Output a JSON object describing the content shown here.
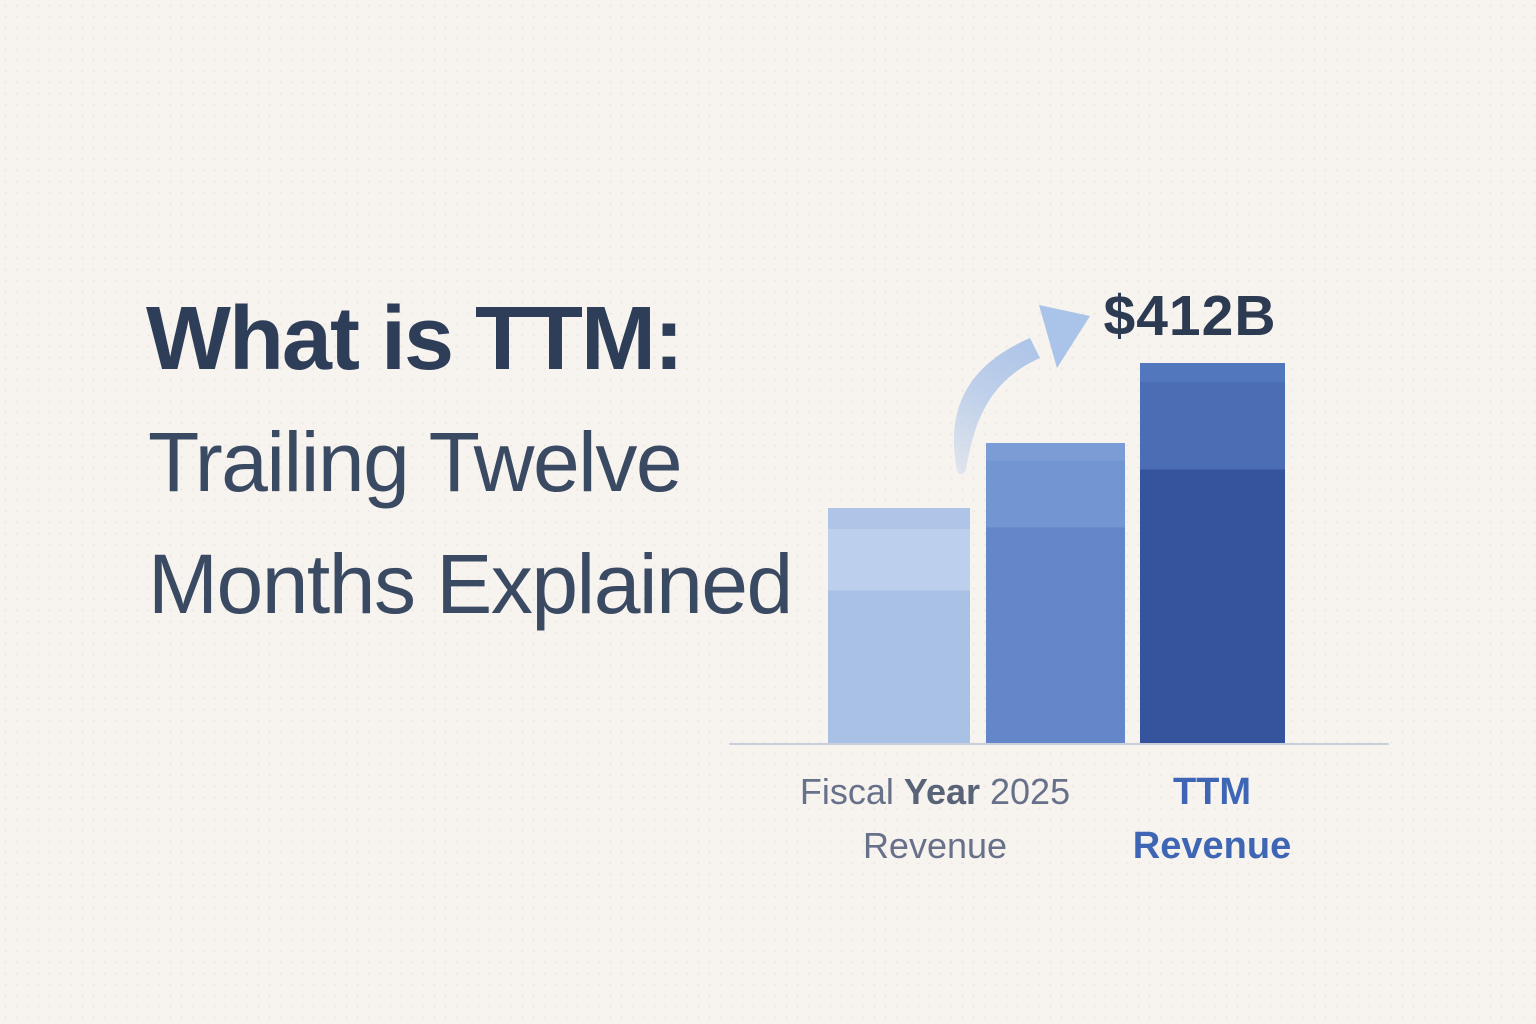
{
  "title": {
    "line1": "What is TTM:",
    "line2": "Trailing Twelve",
    "line3": "Months Explained",
    "color_bold": "#2f3e58",
    "color_light": "#3b4a63"
  },
  "chart_data": {
    "type": "bar",
    "title": "TTM (Trailing Twelve Months) revenue growth illustration",
    "categories": [
      "Fiscal Year 2025 Revenue",
      "",
      "TTM Revenue"
    ],
    "values": [
      255,
      325,
      412
    ],
    "unit": "USD billions (estimated from bar heights; only TTM bar labeled)",
    "ylim": [
      0,
      412
    ],
    "gridlines": false,
    "legend_position": "none",
    "annotations": [
      {
        "text": "$412B",
        "target": "TTM Revenue bar",
        "color": "#2c3a52"
      }
    ],
    "bars": [
      {
        "name": "bar-fy-revenue",
        "value": 255,
        "cap_color": "#aec5e8",
        "cap_pct": 9,
        "color_top": "#bccfec",
        "split_pct": 35,
        "color_bottom": "#a9c1e5"
      },
      {
        "name": "bar-mid-revenue",
        "value": 325,
        "cap_color": "#7b9cd5",
        "cap_pct": 6,
        "color_top": "#7296d1",
        "split_pct": 28,
        "color_bottom": "#6387c8"
      },
      {
        "name": "bar-ttm-revenue",
        "value": 412,
        "cap_color": "#5377bd",
        "cap_pct": 5,
        "color_top": "#4a6db4",
        "split_pct": 28,
        "color_bottom": "#36549e"
      }
    ],
    "axis_color": "#c9cfda"
  },
  "annotation": {
    "value_label": "$412B",
    "color": "#2c3a52"
  },
  "labels": {
    "fiscal": {
      "part1": "Fiscal",
      "part2": "Year",
      "part3": "2025",
      "line2": "Revenue",
      "color": "#68718a"
    },
    "ttm": {
      "line1": "TTM",
      "line2": "Revenue",
      "color": "#3f66b5"
    }
  },
  "arrow": {
    "color": "#aac3e8"
  },
  "background": {
    "color": "#f7f3ef"
  }
}
